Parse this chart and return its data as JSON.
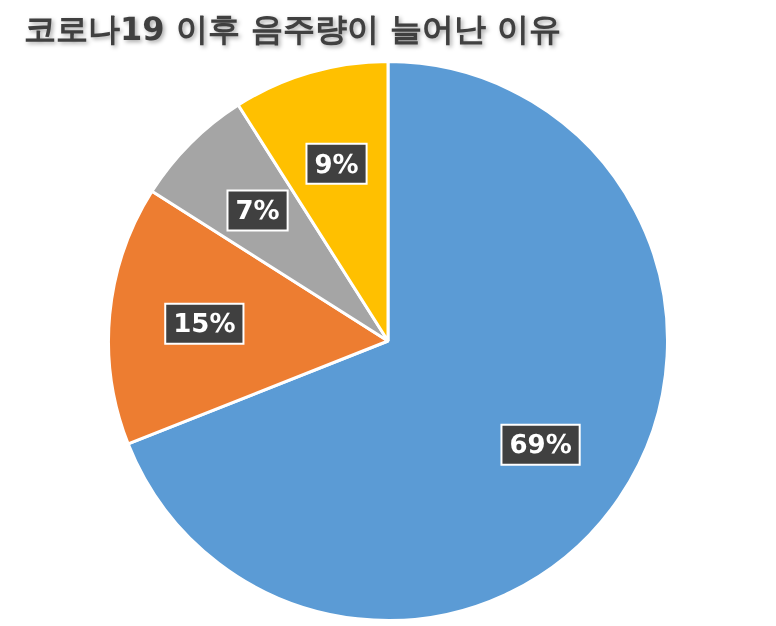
{
  "chart_data": {
    "type": "pie",
    "title": "코로나19 이후 음주량이 늘어난 이유",
    "categories": [
      null,
      null,
      null,
      null
    ],
    "values": [
      69,
      15,
      7,
      9
    ],
    "colors": [
      "#5b9bd5",
      "#ed7d31",
      "#a5a5a5",
      "#ffc000"
    ],
    "value_labels": [
      "69%",
      "15%",
      "7%",
      "9%"
    ],
    "legend": false
  }
}
